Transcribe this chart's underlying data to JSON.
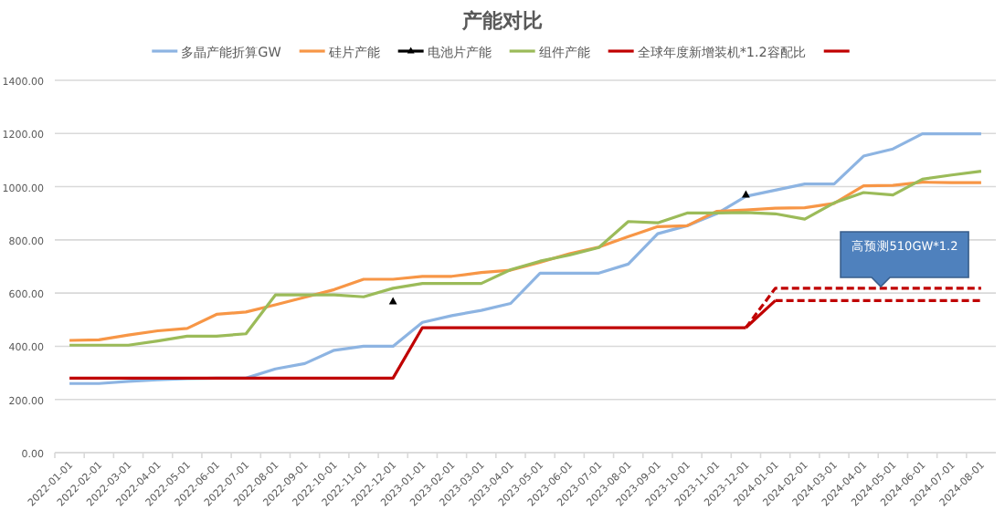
{
  "chart_data": {
    "type": "line",
    "title": "产能对比",
    "categories": [
      "2022-01-01",
      "2022-02-01",
      "2022-03-01",
      "2022-04-01",
      "2022-05-01",
      "2022-06-01",
      "2022-07-01",
      "2022-08-01",
      "2022-09-01",
      "2022-10-01",
      "2022-11-01",
      "2022-12-01",
      "2023-01-01",
      "2023-02-01",
      "2023-03-01",
      "2023-04-01",
      "2023-05-01",
      "2023-06-01",
      "2023-07-01",
      "2023-08-01",
      "2023-09-01",
      "2023-10-01",
      "2023-11-01",
      "2023-12-01",
      "2024-01-01",
      "2024-02-01",
      "2024-03-01",
      "2024-04-01",
      "2024-05-01",
      "2024-06-01",
      "2024-07-01",
      "2024-08-01"
    ],
    "ylim": [
      0,
      1400
    ],
    "yticks": [
      {
        "value": 0,
        "label": "0.00"
      },
      {
        "value": 200,
        "label": "200.00"
      },
      {
        "value": 400,
        "label": "400.00"
      },
      {
        "value": 600,
        "label": "600.00"
      },
      {
        "value": 800,
        "label": "800.00"
      },
      {
        "value": 1000,
        "label": "1000.00"
      },
      {
        "value": 1200,
        "label": "1200.00"
      },
      {
        "value": 1400,
        "label": "1400.00"
      }
    ],
    "grid": "y",
    "legend": "top",
    "series": [
      {
        "name": "多晶产能折算GW",
        "color": "#8db4e2",
        "line_style": "solid",
        "values": [
          260,
          260,
          268,
          274,
          278,
          280,
          280,
          315,
          335,
          385,
          400,
          400,
          490,
          515,
          535,
          561,
          675,
          675,
          675,
          709,
          823,
          853,
          898,
          964,
          987,
          1010,
          1010,
          1115,
          1142,
          1199,
          1199,
          1199
        ]
      },
      {
        "name": "硅片产能",
        "color": "#f79646",
        "line_style": "solid",
        "values": [
          422,
          424,
          442,
          458,
          467,
          520,
          529,
          556,
          584,
          613,
          652,
          652,
          663,
          663,
          677,
          686,
          716,
          748,
          773,
          812,
          850,
          853,
          907,
          912,
          919,
          921,
          937,
          1003,
          1005,
          1017,
          1015,
          1015
        ]
      },
      {
        "name": "电池片产能",
        "type": "scatter",
        "color": "#000000",
        "marker": "triangle",
        "values": [
          null,
          null,
          null,
          null,
          null,
          null,
          null,
          null,
          null,
          null,
          null,
          568,
          null,
          null,
          null,
          null,
          null,
          null,
          null,
          null,
          null,
          null,
          null,
          969,
          null,
          null,
          null,
          null,
          null,
          null,
          null,
          null
        ]
      },
      {
        "name": "组件产能",
        "color": "#9bbb59",
        "line_style": "solid",
        "values": [
          404,
          404,
          404,
          420,
          438,
          438,
          447,
          593,
          593,
          593,
          586,
          618,
          636,
          636,
          636,
          688,
          720,
          743,
          771,
          869,
          864,
          901,
          901,
          903,
          898,
          878,
          939,
          978,
          969,
          1028,
          1044,
          1058
        ]
      },
      {
        "name": "全球年度新增装机*1.2容配比",
        "color": "#c00000",
        "line_style": "solid",
        "values": [
          280,
          280,
          280,
          280,
          280,
          280,
          280,
          280,
          280,
          280,
          280,
          280,
          470,
          470,
          470,
          470,
          470,
          470,
          470,
          470,
          470,
          470,
          470,
          470,
          null,
          null,
          null,
          null,
          null,
          null,
          null,
          null
        ]
      },
      {
        "color": "#c00000",
        "line_style": "solid",
        "values": [
          null,
          null,
          null,
          null,
          null,
          null,
          null,
          null,
          null,
          null,
          null,
          null,
          null,
          null,
          null,
          null,
          null,
          null,
          null,
          null,
          null,
          null,
          null,
          470,
          572,
          null,
          null,
          null,
          null,
          null,
          null,
          null
        ]
      },
      {
        "color": "#c00000",
        "line_style": "dashed",
        "values": [
          null,
          null,
          null,
          null,
          null,
          null,
          null,
          null,
          null,
          null,
          null,
          null,
          null,
          null,
          null,
          null,
          null,
          null,
          null,
          null,
          null,
          null,
          null,
          null,
          572,
          572,
          572,
          572,
          572,
          572,
          572,
          572
        ]
      },
      {
        "color": "#c00000",
        "line_style": "dashed",
        "values": [
          null,
          null,
          null,
          null,
          null,
          null,
          null,
          null,
          null,
          null,
          null,
          null,
          null,
          null,
          null,
          null,
          null,
          null,
          null,
          null,
          null,
          null,
          null,
          470,
          618,
          618,
          618,
          618,
          618,
          618,
          618,
          618
        ]
      }
    ],
    "annotations": [
      "高预测510GW*1.2"
    ]
  }
}
